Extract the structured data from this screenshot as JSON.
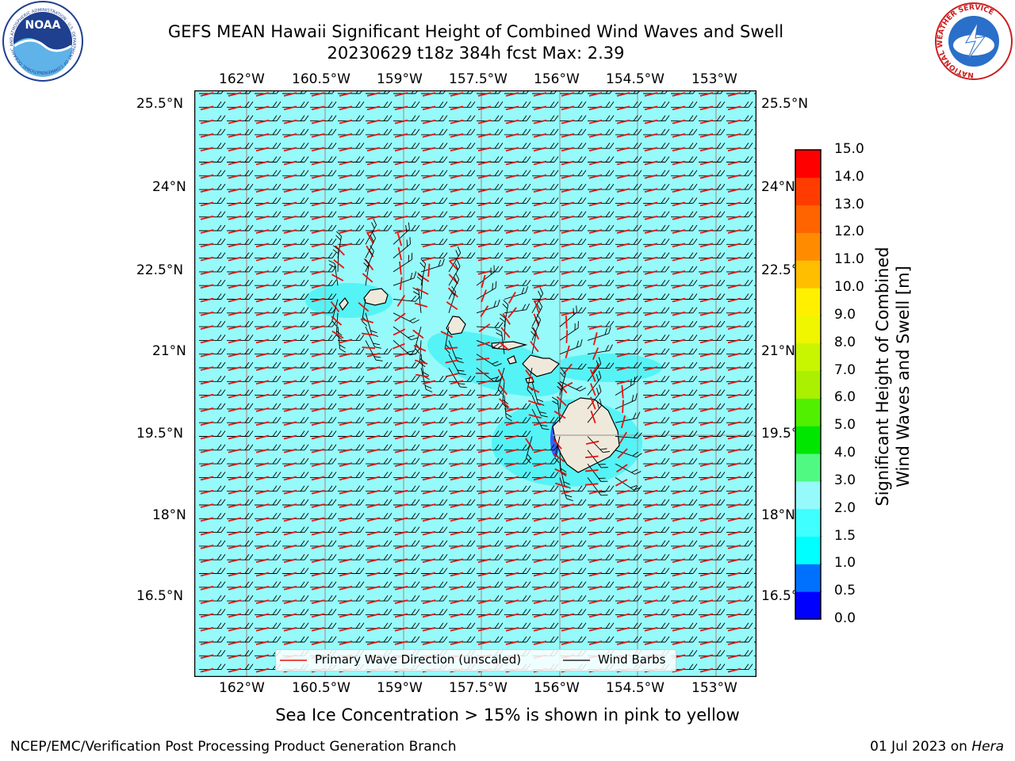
{
  "header": {
    "title_line1": "GEFS MEAN Hawaii Significant Height of Combined Wind Waves and Swell",
    "title_line2": "20230629 t18z 384h fcst   Max: 2.39"
  },
  "map": {
    "lon_ticks": [
      "162°W",
      "160.5°W",
      "159°W",
      "157.5°W",
      "156°W",
      "154.5°W",
      "153°W"
    ],
    "lat_ticks": [
      "25.5°N",
      "24°N",
      "22.5°N",
      "21°N",
      "19.5°N",
      "18°N",
      "16.5°N"
    ],
    "ocean_color": "#96fafa",
    "land_color": "#efe9db",
    "legend": {
      "wave_label": "Primary Wave Direction (unscaled)",
      "barb_label": "Wind Barbs",
      "wave_color": "#e8120c",
      "barb_color": "#000000"
    }
  },
  "colorbar": {
    "title_line1": "Significant Height of Combined",
    "title_line2": "Wind Waves and Swell [m]",
    "labels": [
      "0.0",
      "0.5",
      "1.0",
      "1.5",
      "2.0",
      "3.0",
      "4.0",
      "5.0",
      "6.0",
      "7.0",
      "8.0",
      "9.0",
      "10.0",
      "11.0",
      "12.0",
      "13.0",
      "14.0",
      "15.0"
    ],
    "colors": [
      "#0000ff",
      "#0070ff",
      "#00ffff",
      "#40ffff",
      "#96fafa",
      "#50fa82",
      "#00e600",
      "#50f000",
      "#aaf000",
      "#c8f500",
      "#f0f500",
      "#fff000",
      "#ffbe00",
      "#ff8c00",
      "#ff6400",
      "#ff3c00",
      "#ff0000"
    ]
  },
  "logos": {
    "noaa_text": "NOAA",
    "noaa_ring": "NATIONAL OCEANIC AND ATMOSPHERIC ADMINISTRATION · U.S. DEPARTMENT OF COMMERCE",
    "nws_ring": "NATIONAL WEATHER SERVICE"
  },
  "notes": {
    "sea_ice": "Sea Ice Concentration > 15% is shown in pink to yellow"
  },
  "footer": {
    "left": "NCEP/EMC/Verification Post Processing Product Generation Branch",
    "right_prefix": "01 Jul 2023 on ",
    "right_host": "Hera"
  }
}
